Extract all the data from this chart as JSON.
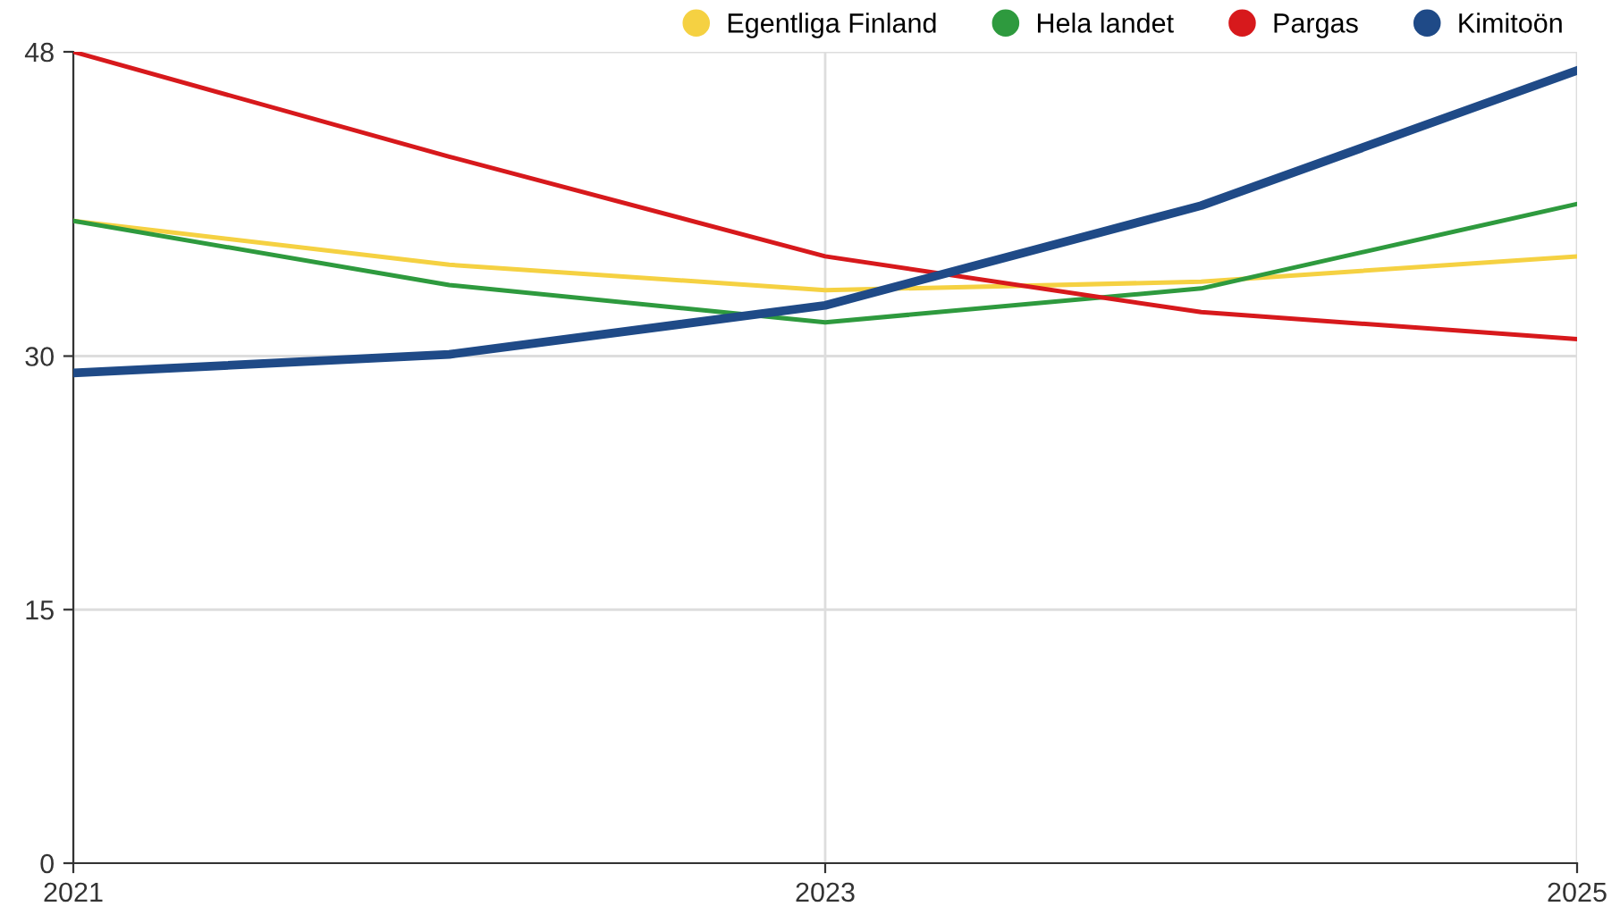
{
  "chart_data": {
    "type": "line",
    "x": [
      2021,
      2022,
      2023,
      2024,
      2025
    ],
    "series": [
      {
        "name": "Egentliga Finland",
        "color": "#f5d142",
        "values": [
          38.0,
          35.4,
          33.9,
          34.4,
          35.9
        ]
      },
      {
        "name": "Hela landet",
        "color": "#2e9a3e",
        "values": [
          38.0,
          34.2,
          32.0,
          34.0,
          39.0
        ]
      },
      {
        "name": "Pargas",
        "color": "#d7191c",
        "values": [
          48.0,
          41.8,
          35.9,
          32.6,
          31.0
        ]
      },
      {
        "name": "Kimitoön",
        "color": "#1f4a87",
        "values": [
          29.0,
          30.1,
          33.0,
          38.9,
          46.9
        ]
      }
    ],
    "xlim": [
      2021,
      2025
    ],
    "xticks": [
      2021,
      2023,
      2025
    ],
    "ylim": [
      0,
      48
    ],
    "yticks": [
      0,
      15,
      30,
      48
    ],
    "grid": true,
    "legend": "top right",
    "marker": "none",
    "line_style": "solid"
  }
}
